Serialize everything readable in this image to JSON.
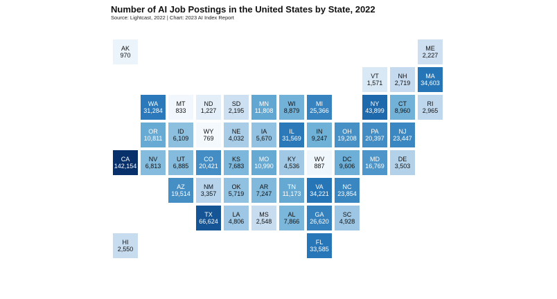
{
  "chart_data": {
    "type": "heatmap",
    "subtype": "tile-map",
    "title": "Number of AI Job Postings in the United States by State, 2022",
    "subtitle": "Source: Lightcast, 2022 | Chart: 2023 AI Index Report",
    "color_scale": {
      "low": "#f7fbff",
      "high": "#08306b",
      "scale": "log"
    },
    "states": [
      {
        "abbr": "AK",
        "value": 970,
        "label": "970",
        "row": 0,
        "col": 0
      },
      {
        "abbr": "ME",
        "value": 2227,
        "label": "2,227",
        "row": 0,
        "col": 11
      },
      {
        "abbr": "VT",
        "value": 1571,
        "label": "1,571",
        "row": 1,
        "col": 9
      },
      {
        "abbr": "NH",
        "value": 2719,
        "label": "2,719",
        "row": 1,
        "col": 10
      },
      {
        "abbr": "MA",
        "value": 34603,
        "label": "34,603",
        "row": 1,
        "col": 11
      },
      {
        "abbr": "WA",
        "value": 31284,
        "label": "31,284",
        "row": 2,
        "col": 1
      },
      {
        "abbr": "MT",
        "value": 833,
        "label": "833",
        "row": 2,
        "col": 2
      },
      {
        "abbr": "ND",
        "value": 1227,
        "label": "1,227",
        "row": 2,
        "col": 3
      },
      {
        "abbr": "SD",
        "value": 2195,
        "label": "2,195",
        "row": 2,
        "col": 4
      },
      {
        "abbr": "MN",
        "value": 11808,
        "label": "11,808",
        "row": 2,
        "col": 5
      },
      {
        "abbr": "WI",
        "value": 8879,
        "label": "8,879",
        "row": 2,
        "col": 6
      },
      {
        "abbr": "MI",
        "value": 25366,
        "label": "25,366",
        "row": 2,
        "col": 7
      },
      {
        "abbr": "NY",
        "value": 43899,
        "label": "43,899",
        "row": 2,
        "col": 9
      },
      {
        "abbr": "CT",
        "value": 8960,
        "label": "8,960",
        "row": 2,
        "col": 10
      },
      {
        "abbr": "RI",
        "value": 2965,
        "label": "2,965",
        "row": 2,
        "col": 11
      },
      {
        "abbr": "OR",
        "value": 10811,
        "label": "10,811",
        "row": 3,
        "col": 1
      },
      {
        "abbr": "ID",
        "value": 6109,
        "label": "6,109",
        "row": 3,
        "col": 2
      },
      {
        "abbr": "WY",
        "value": 769,
        "label": "769",
        "row": 3,
        "col": 3
      },
      {
        "abbr": "NE",
        "value": 4032,
        "label": "4,032",
        "row": 3,
        "col": 4
      },
      {
        "abbr": "IA",
        "value": 5670,
        "label": "5,670",
        "row": 3,
        "col": 5
      },
      {
        "abbr": "IL",
        "value": 31569,
        "label": "31,569",
        "row": 3,
        "col": 6
      },
      {
        "abbr": "IN",
        "value": 9247,
        "label": "9,247",
        "row": 3,
        "col": 7
      },
      {
        "abbr": "OH",
        "value": 19208,
        "label": "19,208",
        "row": 3,
        "col": 8
      },
      {
        "abbr": "PA",
        "value": 20397,
        "label": "20,397",
        "row": 3,
        "col": 9
      },
      {
        "abbr": "NJ",
        "value": 23447,
        "label": "23,447",
        "row": 3,
        "col": 10
      },
      {
        "abbr": "CA",
        "value": 142154,
        "label": "142,154",
        "row": 4,
        "col": 0
      },
      {
        "abbr": "NV",
        "value": 6813,
        "label": "6,813",
        "row": 4,
        "col": 1
      },
      {
        "abbr": "UT",
        "value": 6885,
        "label": "6,885",
        "row": 4,
        "col": 2
      },
      {
        "abbr": "CO",
        "value": 20421,
        "label": "20,421",
        "row": 4,
        "col": 3
      },
      {
        "abbr": "KS",
        "value": 7683,
        "label": "7,683",
        "row": 4,
        "col": 4
      },
      {
        "abbr": "MO",
        "value": 10990,
        "label": "10,990",
        "row": 4,
        "col": 5
      },
      {
        "abbr": "KY",
        "value": 4536,
        "label": "4,536",
        "row": 4,
        "col": 6
      },
      {
        "abbr": "WV",
        "value": 887,
        "label": "887",
        "row": 4,
        "col": 7
      },
      {
        "abbr": "DC",
        "value": 9606,
        "label": "9,606",
        "row": 4,
        "col": 8
      },
      {
        "abbr": "MD",
        "value": 16769,
        "label": "16,769",
        "row": 4,
        "col": 9
      },
      {
        "abbr": "DE",
        "value": 3503,
        "label": "3,503",
        "row": 4,
        "col": 10
      },
      {
        "abbr": "AZ",
        "value": 19514,
        "label": "19,514",
        "row": 5,
        "col": 2
      },
      {
        "abbr": "NM",
        "value": 3357,
        "label": "3,357",
        "row": 5,
        "col": 3
      },
      {
        "abbr": "OK",
        "value": 5719,
        "label": "5,719",
        "row": 5,
        "col": 4
      },
      {
        "abbr": "AR",
        "value": 7247,
        "label": "7,247",
        "row": 5,
        "col": 5
      },
      {
        "abbr": "TN",
        "value": 11173,
        "label": "11,173",
        "row": 5,
        "col": 6
      },
      {
        "abbr": "VA",
        "value": 34221,
        "label": "34,221",
        "row": 5,
        "col": 7
      },
      {
        "abbr": "NC",
        "value": 23854,
        "label": "23,854",
        "row": 5,
        "col": 8
      },
      {
        "abbr": "TX",
        "value": 66624,
        "label": "66,624",
        "row": 6,
        "col": 3
      },
      {
        "abbr": "LA",
        "value": 4806,
        "label": "4,806",
        "row": 6,
        "col": 4
      },
      {
        "abbr": "MS",
        "value": 2548,
        "label": "2,548",
        "row": 6,
        "col": 5
      },
      {
        "abbr": "AL",
        "value": 7866,
        "label": "7,866",
        "row": 6,
        "col": 6
      },
      {
        "abbr": "GA",
        "value": 26620,
        "label": "26,620",
        "row": 6,
        "col": 7
      },
      {
        "abbr": "SC",
        "value": 4928,
        "label": "4,928",
        "row": 6,
        "col": 8
      },
      {
        "abbr": "HI",
        "value": 2550,
        "label": "2,550",
        "row": 7,
        "col": 0
      },
      {
        "abbr": "FL",
        "value": 33585,
        "label": "33,585",
        "row": 7,
        "col": 7
      }
    ]
  }
}
